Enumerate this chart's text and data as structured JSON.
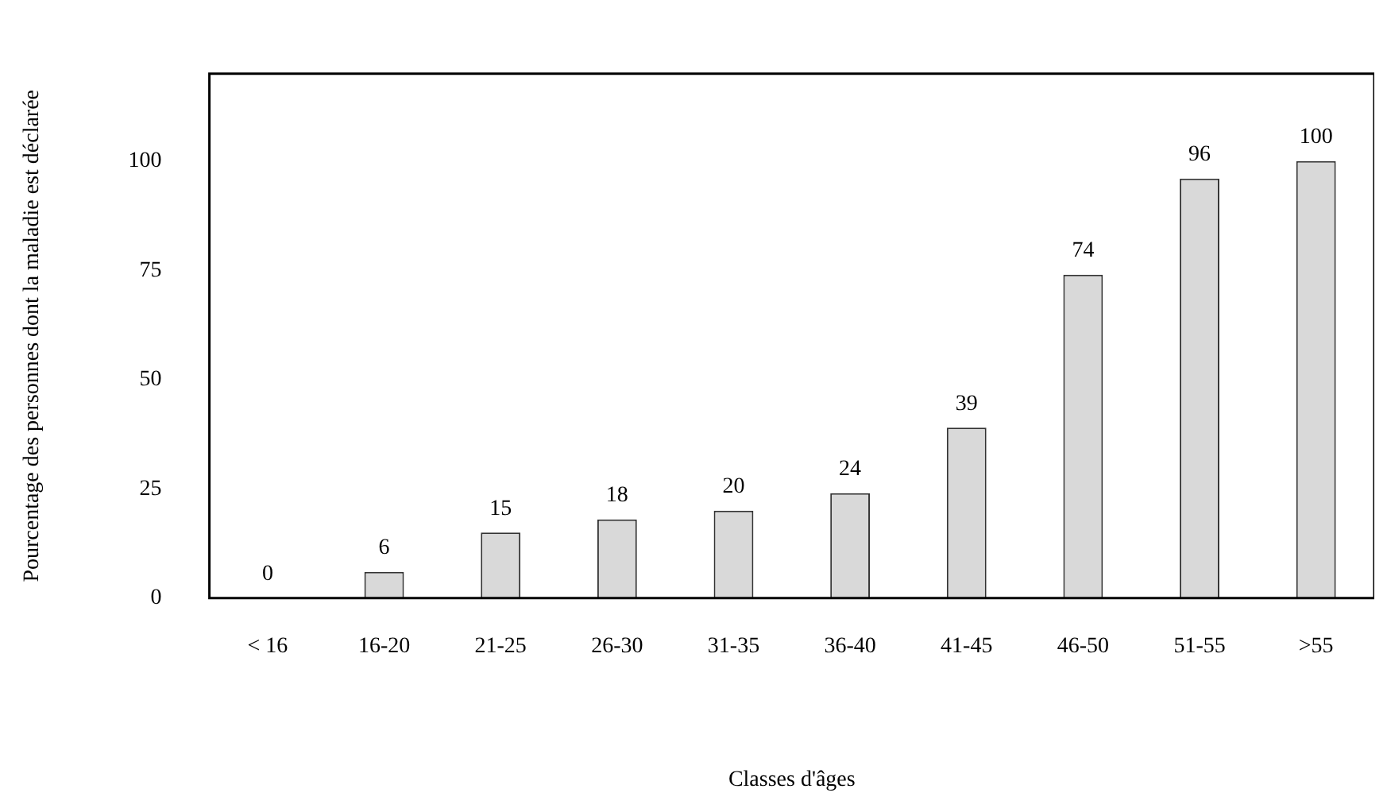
{
  "chart_data": {
    "type": "bar",
    "xlabel": "Classes d'âges",
    "ylabel": "Pourcentage des personnes dont la maladie est déclarée",
    "categories": [
      "< 16",
      "16-20",
      "21-25",
      "26-30",
      "31-35",
      "36-40",
      "41-45",
      "46-50",
      "51-55",
      ">55"
    ],
    "values": [
      0,
      6,
      15,
      18,
      20,
      24,
      39,
      74,
      96,
      100
    ],
    "color": "#d9d9d9",
    "ylim": [
      0,
      120
    ],
    "yticks": [
      0,
      25,
      50,
      75,
      100
    ],
    "grid": false,
    "legend": false,
    "data_labels": true
  }
}
